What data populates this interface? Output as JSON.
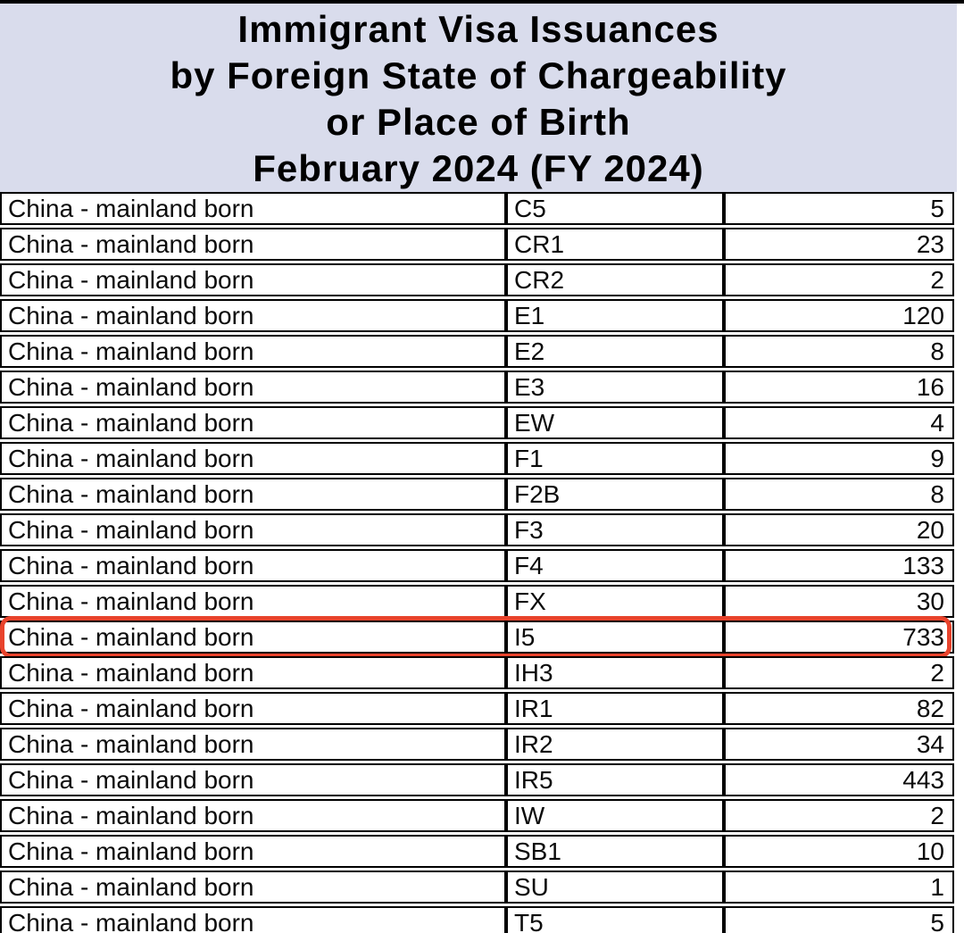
{
  "header": {
    "title_lines": [
      "Immigrant Visa Issuances",
      "by Foreign State of Chargeability",
      "or Place of Birth",
      "February 2024 (FY 2024)"
    ]
  },
  "table": {
    "highlighted_visa_class": "I5",
    "rows": [
      {
        "place": "China - mainland born",
        "visa_class": "C5",
        "issuances": 5
      },
      {
        "place": "China - mainland born",
        "visa_class": "CR1",
        "issuances": 23
      },
      {
        "place": "China - mainland born",
        "visa_class": "CR2",
        "issuances": 2
      },
      {
        "place": "China - mainland born",
        "visa_class": "E1",
        "issuances": 120
      },
      {
        "place": "China - mainland born",
        "visa_class": "E2",
        "issuances": 8
      },
      {
        "place": "China - mainland born",
        "visa_class": "E3",
        "issuances": 16
      },
      {
        "place": "China - mainland born",
        "visa_class": "EW",
        "issuances": 4
      },
      {
        "place": "China - mainland born",
        "visa_class": "F1",
        "issuances": 9
      },
      {
        "place": "China - mainland born",
        "visa_class": "F2B",
        "issuances": 8
      },
      {
        "place": "China - mainland born",
        "visa_class": "F3",
        "issuances": 20
      },
      {
        "place": "China - mainland born",
        "visa_class": "F4",
        "issuances": 133
      },
      {
        "place": "China - mainland born",
        "visa_class": "FX",
        "issuances": 30
      },
      {
        "place": "China - mainland born",
        "visa_class": "I5",
        "issuances": 733
      },
      {
        "place": "China - mainland born",
        "visa_class": "IH3",
        "issuances": 2
      },
      {
        "place": "China - mainland born",
        "visa_class": "IR1",
        "issuances": 82
      },
      {
        "place": "China - mainland born",
        "visa_class": "IR2",
        "issuances": 34
      },
      {
        "place": "China - mainland born",
        "visa_class": "IR5",
        "issuances": 443
      },
      {
        "place": "China - mainland born",
        "visa_class": "IW",
        "issuances": 2
      },
      {
        "place": "China - mainland born",
        "visa_class": "SB1",
        "issuances": 10
      },
      {
        "place": "China - mainland born",
        "visa_class": "SU",
        "issuances": 1
      },
      {
        "place": "China - mainland born",
        "visa_class": "T5",
        "issuances": 5
      }
    ]
  },
  "colors": {
    "header_bg": "#d9dcec",
    "highlight_border": "#e8432c",
    "table_border": "#000000",
    "row_bg": "#ffffff"
  }
}
